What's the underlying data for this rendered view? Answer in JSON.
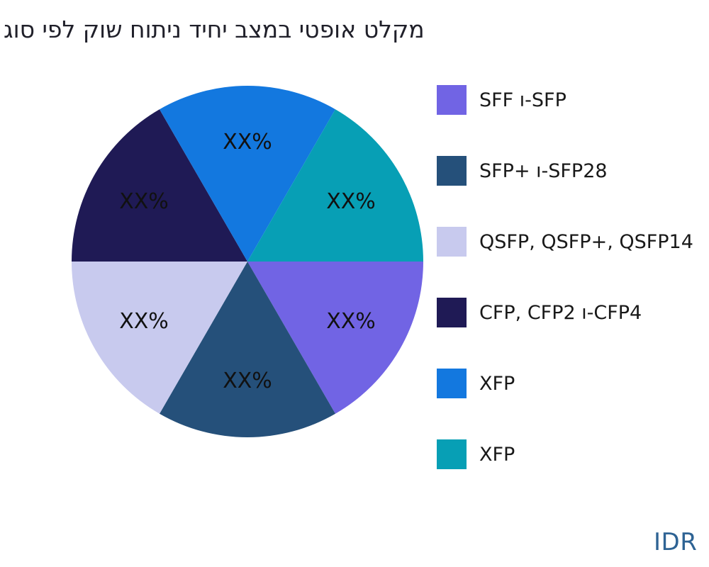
{
  "page": {
    "background": "#ffffff",
    "watermark": "IDR",
    "watermark_color": "#2e6394"
  },
  "chart_data": {
    "type": "pie",
    "title": "מקלט אופטי במצב יחיד ניתוח שוק לפי סוג",
    "direction": "clockwise",
    "start_angle_deg": 0,
    "legend_position": "right",
    "label_distance": 0.68,
    "label_color": "#111111",
    "series": [
      {
        "name": "SFF ו-SFP",
        "value": 16.67,
        "display_value": "XX%",
        "color": "#7164e4"
      },
      {
        "name": "SFP+ ו-SFP28",
        "value": 16.67,
        "display_value": "XX%",
        "color": "#25507a"
      },
      {
        "name": "QSFP, QSFP+, QSFP14",
        "value": 16.67,
        "display_value": "XX%",
        "color": "#c8caee"
      },
      {
        "name": "CFP, CFP2 ו-CFP4",
        "value": 16.67,
        "display_value": "XX%",
        "color": "#1f1a55"
      },
      {
        "name": "XFP",
        "value": 16.67,
        "display_value": "XX%",
        "color": "#1378df"
      },
      {
        "name": "XFP",
        "value": 16.67,
        "display_value": "XX%",
        "color": "#079fb5"
      }
    ]
  }
}
